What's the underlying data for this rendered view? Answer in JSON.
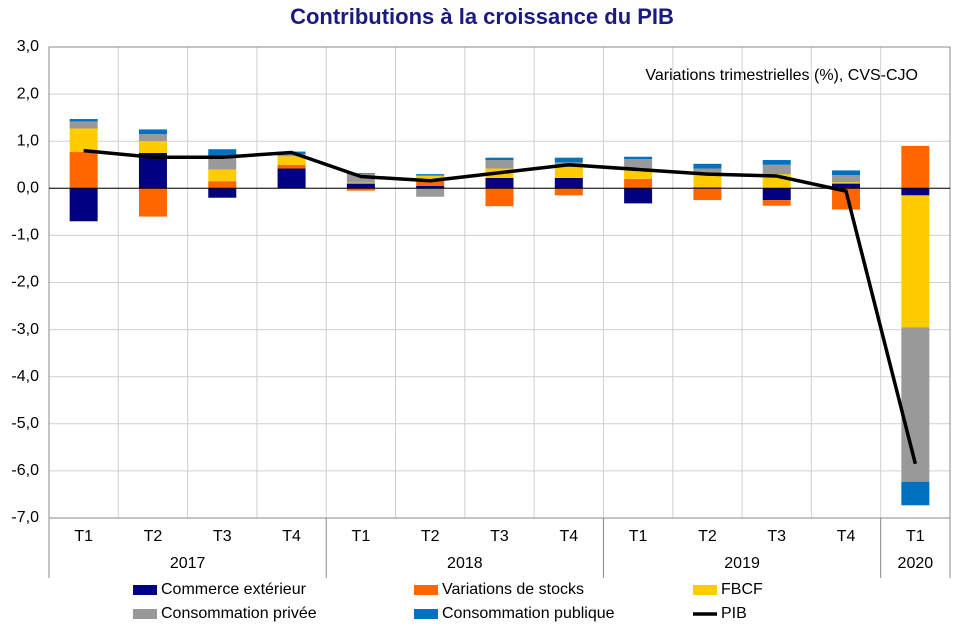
{
  "chart_data": {
    "type": "bar",
    "title": "Contributions à la croissance du PIB",
    "annotation": "Variations trimestrielles (%), CVS-CJO",
    "categories": [
      "T1",
      "T2",
      "T3",
      "T4",
      "T1",
      "T2",
      "T3",
      "T4",
      "T1",
      "T2",
      "T3",
      "T4",
      "T1"
    ],
    "years": [
      "2017",
      null,
      null,
      null,
      "2018",
      null,
      null,
      null,
      "2019",
      null,
      null,
      null,
      "2020"
    ],
    "stacked": true,
    "grid": true,
    "ylim": [
      -7,
      3
    ],
    "yticks": [
      {
        "value": 3,
        "label": "3,0"
      },
      {
        "value": 2,
        "label": "2,0"
      },
      {
        "value": 1,
        "label": "1,0"
      },
      {
        "value": 0,
        "label": "0,0"
      },
      {
        "value": -1,
        "label": "-1,0"
      },
      {
        "value": -2,
        "label": "-2,0"
      },
      {
        "value": -3,
        "label": "-3,0"
      },
      {
        "value": -4,
        "label": "-4,0"
      },
      {
        "value": -5,
        "label": "-5,0"
      },
      {
        "value": -6,
        "label": "-6,0"
      },
      {
        "value": -7,
        "label": "-7,0"
      }
    ],
    "series": [
      {
        "name": "Commerce extérieur",
        "type": "bar",
        "color": "#000080",
        "values": [
          -0.7,
          0.75,
          -0.2,
          0.42,
          0.1,
          0.05,
          0.22,
          0.22,
          -0.32,
          0.02,
          -0.25,
          0.1,
          -0.15
        ]
      },
      {
        "name": "Variations de stocks",
        "type": "bar",
        "color": "#ff6600",
        "values": [
          0.77,
          -0.6,
          0.15,
          0.08,
          -0.05,
          0.12,
          -0.38,
          -0.15,
          0.2,
          -0.25,
          -0.12,
          -0.45,
          0.9
        ]
      },
      {
        "name": "FBCF",
        "type": "bar",
        "color": "#ffcc00",
        "values": [
          0.5,
          0.25,
          0.25,
          0.18,
          0.02,
          0.1,
          0.2,
          0.23,
          0.22,
          0.28,
          0.3,
          0.03,
          -2.8
        ]
      },
      {
        "name": "Consommation privée",
        "type": "bar",
        "color": "#999999",
        "values": [
          0.15,
          0.15,
          0.28,
          0.05,
          0.18,
          -0.18,
          0.18,
          0.1,
          0.2,
          0.12,
          0.2,
          0.15,
          -3.28
        ]
      },
      {
        "name": "Consommation publique",
        "type": "bar",
        "color": "#0070c0",
        "values": [
          0.05,
          0.1,
          0.15,
          0.05,
          0.02,
          0.03,
          0.05,
          0.1,
          0.05,
          0.1,
          0.1,
          0.1,
          -0.5
        ]
      },
      {
        "name": "PIB",
        "type": "line",
        "color": "#000000",
        "values": [
          0.8,
          0.66,
          0.66,
          0.76,
          0.25,
          0.16,
          0.33,
          0.5,
          0.4,
          0.3,
          0.26,
          -0.06,
          -5.85
        ]
      }
    ]
  }
}
